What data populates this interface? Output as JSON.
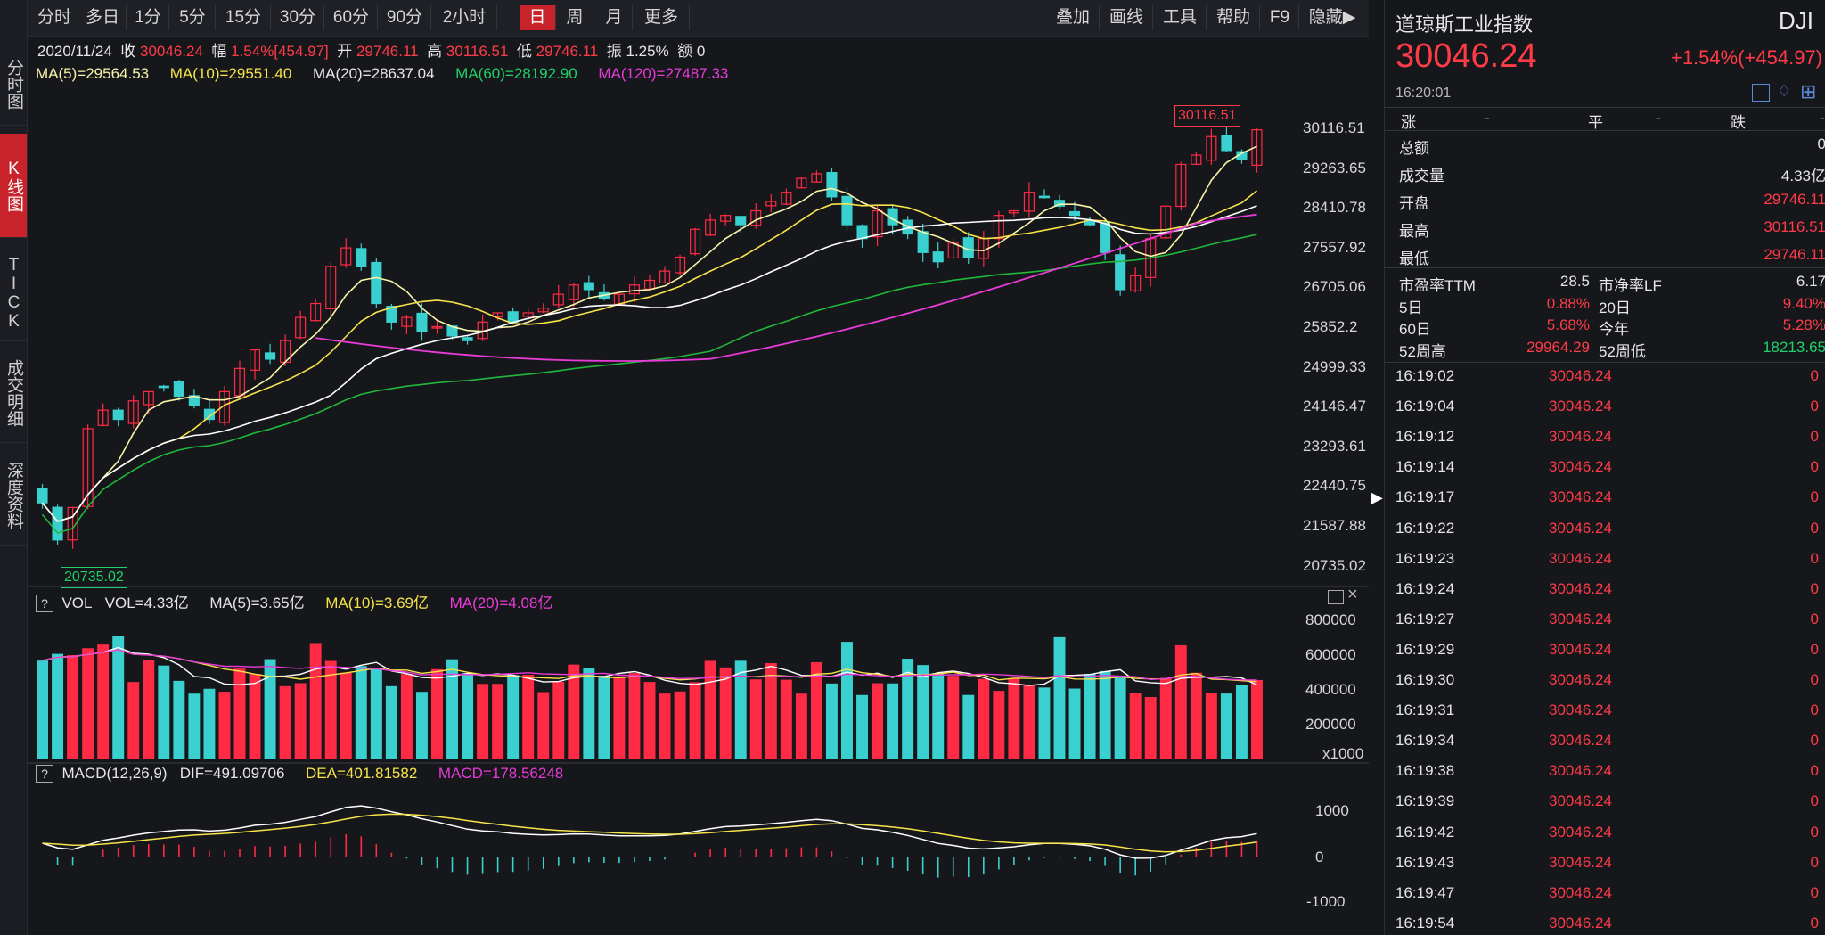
{
  "left_tabs": [
    "分时图",
    "K线图",
    "TICK",
    "成交明细",
    "深度资料"
  ],
  "toolbar": {
    "periods": [
      "分时",
      "多日",
      "1分",
      "5分",
      "15分",
      "30分",
      "60分",
      "90分",
      "2小时",
      "日",
      "周",
      "月",
      "更多"
    ],
    "active_period": "日",
    "tools": [
      "叠加",
      "画线",
      "工具",
      "帮助",
      "F9",
      "隐藏▶"
    ]
  },
  "info_bar": {
    "date": "2020/11/24",
    "close_label": "收",
    "close": "30046.24",
    "range_label": "幅",
    "range": "1.54%[454.97]",
    "open_label": "开",
    "open": "29746.11",
    "high_label": "高",
    "high": "30116.51",
    "low_label": "低",
    "low": "29746.11",
    "amp_label": "振",
    "amp": "1.25%",
    "amount_label": "额",
    "amount": "0"
  },
  "ma_bar": {
    "ma5": "MA(5)=29564.53",
    "ma10": "MA(10)=29551.40",
    "ma20": "MA(20)=28637.04",
    "ma60": "MA(60)=28192.90",
    "ma120": "MA(120)=27487.33"
  },
  "price_axis": [
    "30116.51",
    "29263.65",
    "28410.78",
    "27557.92",
    "26705.06",
    "25852.2",
    "24999.33",
    "24146.47",
    "23293.61",
    "22440.75",
    "21587.88",
    "20735.02"
  ],
  "max_label": "30116.51",
  "min_label": "20735.02",
  "vol_bar": {
    "q": "?",
    "title": "VOL",
    "vol": "VOL=4.33亿",
    "ma5": "MA(5)=3.65亿",
    "ma10": "MA(10)=3.69亿",
    "ma20": "MA(20)=4.08亿"
  },
  "vol_axis": [
    "800000",
    "600000",
    "400000",
    "200000",
    "x1000"
  ],
  "macd_bar": {
    "q": "?",
    "title": "MACD(12,26,9)",
    "dif": "DIF=491.09706",
    "dea": "DEA=401.81582",
    "macd": "MACD=178.56248"
  },
  "macd_axis": [
    "1000",
    "0",
    "-1000"
  ],
  "quote": {
    "name": "道琼斯工业指数",
    "code": "DJI",
    "price": "30046.24",
    "change": "+1.54%(+454.97)",
    "time": "16:20:01"
  },
  "stats_header": {
    "up": "涨",
    "up_v": "-",
    "flat": "平",
    "flat_v": "-",
    "down": "跌",
    "down_v": "-"
  },
  "stats": [
    {
      "label": "总额",
      "value": "0",
      "color": "white"
    },
    {
      "label": "成交量",
      "value": "4.33亿",
      "color": "white"
    },
    {
      "label": "开盘",
      "value": "29746.11",
      "color": "red"
    },
    {
      "label": "最高",
      "value": "30116.51",
      "color": "red"
    },
    {
      "label": "最低",
      "value": "29746.11",
      "color": "red"
    }
  ],
  "ratios": [
    {
      "l1": "市盈率TTM",
      "v1": "28.5",
      "c1": "white",
      "l2": "市净率LF",
      "v2": "6.17",
      "c2": "white"
    },
    {
      "l1": "5日",
      "v1": "0.88%",
      "c1": "red",
      "l2": "20日",
      "v2": "9.40%",
      "c2": "red"
    },
    {
      "l1": "60日",
      "v1": "5.68%",
      "c1": "red",
      "l2": "今年",
      "v2": "5.28%",
      "c2": "red"
    },
    {
      "l1": "52周高",
      "v1": "29964.29",
      "c1": "red",
      "l2": "52周低",
      "v2": "18213.65",
      "c2": "green"
    }
  ],
  "ticks": [
    {
      "time": "16:19:02",
      "price": "30046.24",
      "vol": "0"
    },
    {
      "time": "16:19:04",
      "price": "30046.24",
      "vol": "0"
    },
    {
      "time": "16:19:12",
      "price": "30046.24",
      "vol": "0"
    },
    {
      "time": "16:19:14",
      "price": "30046.24",
      "vol": "0"
    },
    {
      "time": "16:19:17",
      "price": "30046.24",
      "vol": "0"
    },
    {
      "time": "16:19:22",
      "price": "30046.24",
      "vol": "0"
    },
    {
      "time": "16:19:23",
      "price": "30046.24",
      "vol": "0"
    },
    {
      "time": "16:19:24",
      "price": "30046.24",
      "vol": "0"
    },
    {
      "time": "16:19:27",
      "price": "30046.24",
      "vol": "0"
    },
    {
      "time": "16:19:29",
      "price": "30046.24",
      "vol": "0"
    },
    {
      "time": "16:19:30",
      "price": "30046.24",
      "vol": "0"
    },
    {
      "time": "16:19:31",
      "price": "30046.24",
      "vol": "0"
    },
    {
      "time": "16:19:34",
      "price": "30046.24",
      "vol": "0"
    },
    {
      "time": "16:19:38",
      "price": "30046.24",
      "vol": "0"
    },
    {
      "time": "16:19:39",
      "price": "30046.24",
      "vol": "0"
    },
    {
      "time": "16:19:42",
      "price": "30046.24",
      "vol": "0"
    },
    {
      "time": "16:19:43",
      "price": "30046.24",
      "vol": "0"
    },
    {
      "time": "16:19:47",
      "price": "30046.24",
      "vol": "0"
    },
    {
      "time": "16:19:54",
      "price": "30046.24",
      "vol": "0"
    }
  ],
  "colors": {
    "up": "#ff2a44",
    "down": "#3ad0d0",
    "ma5": "#f8f4a8",
    "ma10": "#f6e34a",
    "ma20": "#ffffff",
    "ma60": "#1fb83a",
    "ma120": "#e83bd8",
    "accent": "#c8232a"
  },
  "chart_data": {
    "type": "candlestick",
    "ylim": [
      20735.02,
      30116.51
    ],
    "range_shown": "2020-05-14 to 2020-11-24",
    "close_series_approx": [
      22000,
      21200,
      21900,
      23600,
      24000,
      23800,
      24200,
      24400,
      24500,
      24300,
      24100,
      23800,
      24400,
      24900,
      25300,
      25100,
      25500,
      26000,
      26300,
      27100,
      27500,
      27100,
      26300,
      25900,
      26000,
      25700,
      25800,
      25600,
      25500,
      25900,
      26100,
      25900,
      26100,
      26200,
      26500,
      26700,
      26600,
      26400,
      26500,
      26700,
      26800,
      27000,
      27300,
      27900,
      28100,
      28200,
      28000,
      28300,
      28500,
      28700,
      29000,
      29100,
      28600,
      28000,
      27700,
      28300,
      28000,
      27800,
      27400,
      27200,
      27600,
      27300,
      27700,
      28200,
      28300,
      28700,
      28600,
      28400,
      28200,
      28000,
      27400,
      26600,
      26900,
      27700,
      28400,
      29300,
      29500,
      29900,
      29600,
      29400,
      30046
    ]
  }
}
